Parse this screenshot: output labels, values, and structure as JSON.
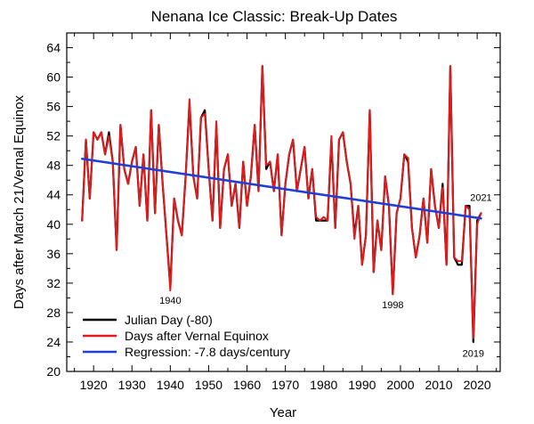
{
  "chart_data": {
    "type": "line",
    "title": "Nenana Ice Classic: Break-Up Dates",
    "xlabel": "Year",
    "ylabel": "Days after March 21/Vernal Equinox",
    "xlim": [
      1913,
      2026
    ],
    "ylim": [
      20,
      66
    ],
    "xticks": [
      1920,
      1930,
      1940,
      1950,
      1960,
      1970,
      1980,
      1990,
      2000,
      2010,
      2020
    ],
    "yticks": [
      20,
      24,
      28,
      32,
      36,
      40,
      44,
      48,
      52,
      56,
      60,
      64
    ],
    "x": [
      1917,
      1918,
      1919,
      1920,
      1921,
      1922,
      1923,
      1924,
      1925,
      1926,
      1927,
      1928,
      1929,
      1930,
      1931,
      1932,
      1933,
      1934,
      1935,
      1936,
      1937,
      1938,
      1939,
      1940,
      1941,
      1942,
      1943,
      1944,
      1945,
      1946,
      1947,
      1948,
      1949,
      1950,
      1951,
      1952,
      1953,
      1954,
      1955,
      1956,
      1957,
      1958,
      1959,
      1960,
      1961,
      1962,
      1963,
      1964,
      1965,
      1966,
      1967,
      1968,
      1969,
      1970,
      1971,
      1972,
      1973,
      1974,
      1975,
      1976,
      1977,
      1978,
      1979,
      1980,
      1981,
      1982,
      1983,
      1984,
      1985,
      1986,
      1987,
      1988,
      1989,
      1990,
      1991,
      1992,
      1993,
      1994,
      1995,
      1996,
      1997,
      1998,
      1999,
      2000,
      2001,
      2002,
      2003,
      2004,
      2005,
      2006,
      2007,
      2008,
      2009,
      2010,
      2011,
      2012,
      2013,
      2014,
      2015,
      2016,
      2017,
      2018,
      2019,
      2020,
      2021
    ],
    "series": [
      {
        "name": "Julian Day (-80)",
        "color": "#000000",
        "values": [
          40.5,
          51.5,
          43.5,
          52.5,
          51.5,
          52.5,
          49.5,
          52.5,
          48.5,
          36.5,
          53.5,
          47.5,
          45.5,
          48.5,
          50.5,
          42.5,
          49.5,
          40.5,
          55.5,
          41.5,
          53.5,
          45.5,
          38.5,
          31.5,
          43.5,
          40.5,
          38.5,
          46.5,
          56.5,
          46.5,
          43.5,
          54.5,
          55.5,
          47.5,
          40.5,
          53.5,
          39.5,
          47.5,
          49.5,
          42.5,
          45.5,
          39.5,
          48.5,
          42.5,
          46.5,
          53.5,
          44.5,
          61.5,
          47.5,
          48.5,
          44.5,
          49.5,
          38.5,
          45.5,
          49.5,
          51.5,
          44.5,
          47.5,
          50.5,
          43.5,
          47.5,
          40.5,
          40.5,
          40.5,
          40.5,
          51.5,
          39.5,
          51.5,
          52.5,
          48.5,
          45.5,
          38.5,
          42.5,
          34.5,
          38.5,
          55.5,
          33.5,
          40.5,
          36.5,
          46.5,
          42.5,
          30.5,
          41.5,
          43.5,
          49.5,
          48.5,
          39.5,
          35.5,
          38.5,
          43.5,
          37.5,
          47.5,
          42.5,
          39.5,
          45.5,
          34.5,
          61.5,
          35.5,
          34.5,
          34.5,
          42.5,
          42.5,
          24.0,
          40.5,
          41.5
        ]
      },
      {
        "name": "Days after Vernal Equinox",
        "color": "#e31a1c",
        "values": [
          40.5,
          51.5,
          43.5,
          52.5,
          51.5,
          52.5,
          49.5,
          52.0,
          48.5,
          36.5,
          53.5,
          47.5,
          45.5,
          48.5,
          50.5,
          42.5,
          49.5,
          40.5,
          55.5,
          41.5,
          53.5,
          45.5,
          38.5,
          31.0,
          43.5,
          40.5,
          38.5,
          46.5,
          57.0,
          46.5,
          43.5,
          54.5,
          55.0,
          47.5,
          40.5,
          54.0,
          39.5,
          47.5,
          49.5,
          42.5,
          45.5,
          39.5,
          48.5,
          42.5,
          46.5,
          53.5,
          44.5,
          61.5,
          48.0,
          48.5,
          44.5,
          49.5,
          38.5,
          45.5,
          49.5,
          51.5,
          44.5,
          47.5,
          50.5,
          43.5,
          47.5,
          41.0,
          40.5,
          41.0,
          40.5,
          52.0,
          39.5,
          51.5,
          52.5,
          48.5,
          45.5,
          38.0,
          42.5,
          34.5,
          38.5,
          55.5,
          33.5,
          40.5,
          36.5,
          46.5,
          42.5,
          30.5,
          41.5,
          43.5,
          49.5,
          49.0,
          39.5,
          35.5,
          38.5,
          43.5,
          37.5,
          47.5,
          42.5,
          39.5,
          45.0,
          34.5,
          61.5,
          35.5,
          35.0,
          35.0,
          42.5,
          42.0,
          24.5,
          40.0,
          41.5
        ]
      },
      {
        "name": "Regression: -7.8 days/century",
        "color": "#1f3fd6",
        "x": [
          1917,
          2021
        ],
        "values": [
          48.9,
          40.8
        ]
      }
    ],
    "annotations": [
      {
        "text": "1940",
        "x": 1940,
        "y": 29.2
      },
      {
        "text": "1998",
        "x": 1998,
        "y": 28.6
      },
      {
        "text": "2019",
        "x": 2019,
        "y": 22.0
      },
      {
        "text": "2021",
        "x": 2021,
        "y": 43.2
      }
    ],
    "legend_position": "bottom-left"
  }
}
